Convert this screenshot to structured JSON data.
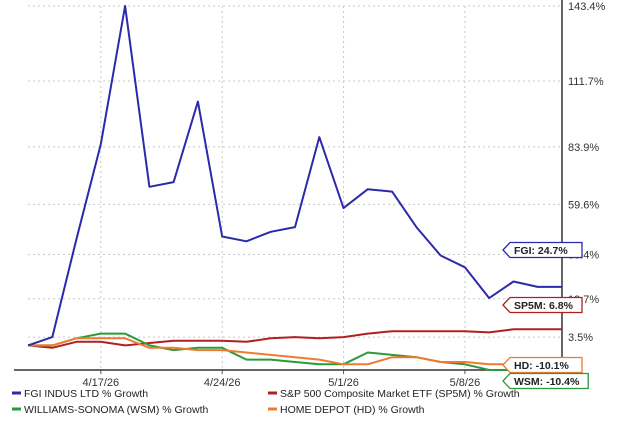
{
  "chart_data": {
    "type": "line",
    "x": [
      "4/14/26",
      "4/15/26",
      "4/16/26",
      "4/17/26",
      "4/20/26",
      "4/21/26",
      "4/22/26",
      "4/23/26",
      "4/24/26",
      "4/27/26",
      "4/28/26",
      "4/29/26",
      "4/30/26",
      "5/1/26",
      "5/4/26",
      "5/5/26",
      "5/6/26",
      "5/7/26",
      "5/8/26",
      "5/11/26",
      "5/12/26",
      "5/13/26",
      "5/14/26"
    ],
    "x_ticks": [
      "4/17/26",
      "4/24/26",
      "5/1/26",
      "5/8/26"
    ],
    "y_ticks": [
      "143.4%",
      "111.7%",
      "83.9%",
      "59.6%",
      "38.4%",
      "19.7%",
      "3.5%"
    ],
    "ylim": [
      -10.4,
      143.4
    ],
    "series": [
      {
        "name": "FGI INDUS LTD % Growth",
        "color": "#2a2aaa",
        "end_label": "FGI: 24.7%",
        "values": [
          0,
          3.5,
          45,
          85,
          143.4,
          67,
          69,
          103,
          46,
          44,
          48,
          50,
          88,
          58,
          66,
          65,
          50,
          38,
          33,
          20,
          27,
          24.7,
          24.7
        ]
      },
      {
        "name": "S&P 500 Composite Market ETF (SP5M) % Growth",
        "color": "#b02020",
        "end_label": "SP5M: 6.8%",
        "values": [
          0,
          -1,
          1.5,
          1.5,
          0,
          1,
          2,
          2,
          2,
          1.5,
          3,
          3.5,
          3,
          3.5,
          5,
          6,
          6,
          6,
          6,
          5.5,
          6.8,
          6.8,
          6.8
        ]
      },
      {
        "name": "WILLIAMS-SONOMA (WSM) % Growth",
        "color": "#2a9a3a",
        "end_label": "WSM: -10.4%",
        "values": [
          0,
          0,
          3,
          5,
          5,
          0,
          -2,
          -1,
          -1,
          -6,
          -6,
          -7,
          -8,
          -8,
          -3,
          -4,
          -5,
          -7,
          -8,
          -10.4,
          -10.4,
          -10.4,
          -10.4
        ]
      },
      {
        "name": "HOME DEPOT (HD) % Growth",
        "color": "#f07a30",
        "end_label": "HD: -10.1%",
        "values": [
          0,
          0,
          3,
          3,
          3,
          -1,
          -1,
          -2,
          -2,
          -3,
          -4,
          -5,
          -6,
          -8,
          -8,
          -5,
          -5,
          -7,
          -7,
          -8,
          -8,
          -10.1,
          -10.1
        ]
      }
    ]
  }
}
